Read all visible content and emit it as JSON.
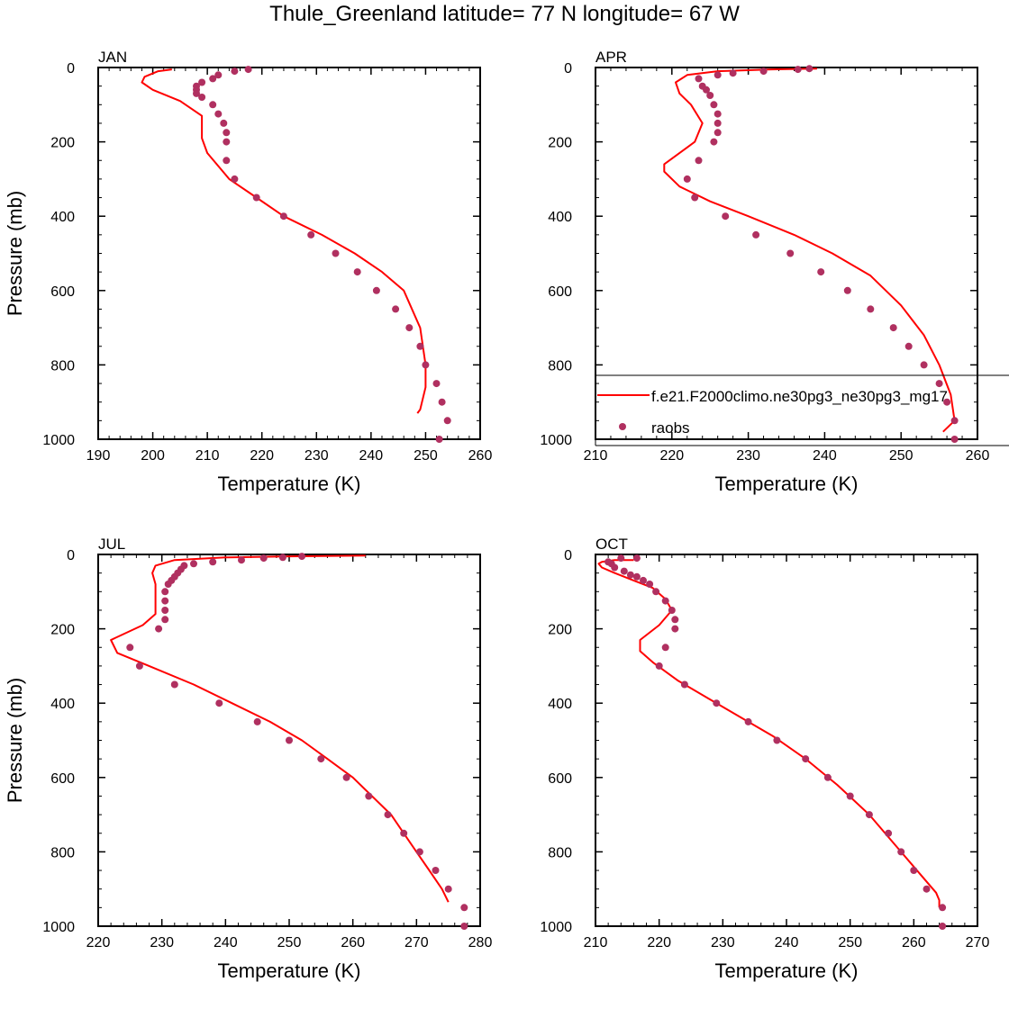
{
  "title": "Thule_Greenland  latitude= 77 N longitude= 67 W",
  "colors": {
    "model": "#ff0000",
    "obs": "#b03060",
    "axis": "#000000"
  },
  "legend": {
    "model_label": "f.e21.F2000climo.ne30pg3_ne30pg3_mg17",
    "obs_label": "raobs"
  },
  "chart_data": [
    {
      "type": "line",
      "panel": "JAN",
      "xlabel": "Temperature (K)",
      "ylabel": "Pressure (mb)",
      "xlim": [
        190,
        260
      ],
      "ylim": [
        0,
        1000
      ],
      "y_reversed": true,
      "xticks": [
        190,
        200,
        210,
        220,
        230,
        240,
        250,
        260
      ],
      "yticks": [
        0,
        200,
        400,
        600,
        800,
        1000
      ],
      "grid": false,
      "series": [
        {
          "name": "f.e21.F2000climo.ne30pg3_ne30pg3_mg17",
          "style": "line",
          "points": [
            [
              203.5,
              5
            ],
            [
              201,
              10
            ],
            [
              198.5,
              25
            ],
            [
              198,
              40
            ],
            [
              200,
              60
            ],
            [
              205,
              90
            ],
            [
              209,
              130
            ],
            [
              209,
              160
            ],
            [
              209,
              190
            ],
            [
              210,
              230
            ],
            [
              214,
              300
            ],
            [
              219,
              350
            ],
            [
              224,
              400
            ],
            [
              231,
              450
            ],
            [
              237,
              500
            ],
            [
              242,
              550
            ],
            [
              246,
              600
            ],
            [
              249,
              700
            ],
            [
              250,
              800
            ],
            [
              250,
              860
            ],
            [
              249,
              920
            ],
            [
              248.5,
              930
            ]
          ]
        },
        {
          "name": "raobs",
          "style": "markers",
          "points": [
            [
              217.5,
              5
            ],
            [
              215,
              10
            ],
            [
              212,
              20
            ],
            [
              211,
              30
            ],
            [
              209,
              40
            ],
            [
              208,
              50
            ],
            [
              208,
              60
            ],
            [
              208,
              70
            ],
            [
              209,
              80
            ],
            [
              211,
              100
            ],
            [
              212,
              125
            ],
            [
              213,
              150
            ],
            [
              213.5,
              175
            ],
            [
              213.5,
              200
            ],
            [
              213.5,
              250
            ],
            [
              215,
              300
            ],
            [
              219,
              350
            ],
            [
              224,
              400
            ],
            [
              229,
              450
            ],
            [
              233.5,
              500
            ],
            [
              237.5,
              550
            ],
            [
              241,
              600
            ],
            [
              244.5,
              650
            ],
            [
              247,
              700
            ],
            [
              249,
              750
            ],
            [
              250,
              800
            ],
            [
              252,
              850
            ],
            [
              253,
              900
            ],
            [
              254,
              950
            ],
            [
              252.5,
              1000
            ]
          ]
        }
      ]
    },
    {
      "type": "line",
      "panel": "APR",
      "xlabel": "Temperature (K)",
      "ylabel": "",
      "xlim": [
        210,
        260
      ],
      "ylim": [
        0,
        1000
      ],
      "y_reversed": true,
      "xticks": [
        210,
        220,
        230,
        240,
        250,
        260
      ],
      "yticks": [
        0,
        200,
        400,
        600,
        800,
        1000
      ],
      "grid": false,
      "legend_position": "bottom-right",
      "series": [
        {
          "name": "f.e21.F2000climo.ne30pg3_ne30pg3_mg17",
          "style": "line",
          "points": [
            [
              239,
              3
            ],
            [
              233,
              5
            ],
            [
              226,
              10
            ],
            [
              222,
              20
            ],
            [
              220.5,
              40
            ],
            [
              221,
              70
            ],
            [
              222.5,
              100
            ],
            [
              224,
              150
            ],
            [
              223,
              200
            ],
            [
              219,
              260
            ],
            [
              219,
              280
            ],
            [
              221,
              320
            ],
            [
              225,
              360
            ],
            [
              230,
              400
            ],
            [
              236,
              450
            ],
            [
              241,
              500
            ],
            [
              246,
              560
            ],
            [
              250,
              640
            ],
            [
              253,
              720
            ],
            [
              255,
              800
            ],
            [
              256.5,
              880
            ],
            [
              257,
              950
            ],
            [
              255.5,
              980
            ]
          ]
        },
        {
          "name": "raobs",
          "style": "markers",
          "points": [
            [
              238,
              3
            ],
            [
              236.5,
              5
            ],
            [
              232,
              10
            ],
            [
              228,
              15
            ],
            [
              226,
              20
            ],
            [
              223.5,
              30
            ],
            [
              224,
              50
            ],
            [
              224.5,
              60
            ],
            [
              225,
              75
            ],
            [
              225.5,
              100
            ],
            [
              226,
              125
            ],
            [
              226,
              150
            ],
            [
              226,
              175
            ],
            [
              225.5,
              200
            ],
            [
              223.5,
              250
            ],
            [
              222,
              300
            ],
            [
              223,
              350
            ],
            [
              227,
              400
            ],
            [
              231,
              450
            ],
            [
              235.5,
              500
            ],
            [
              239.5,
              550
            ],
            [
              243,
              600
            ],
            [
              246,
              650
            ],
            [
              249,
              700
            ],
            [
              251,
              750
            ],
            [
              253,
              800
            ],
            [
              255,
              850
            ],
            [
              256,
              900
            ],
            [
              257,
              950
            ],
            [
              257,
              1000
            ]
          ]
        }
      ]
    },
    {
      "type": "line",
      "panel": "JUL",
      "xlabel": "Temperature (K)",
      "ylabel": "Pressure (mb)",
      "xlim": [
        220,
        280
      ],
      "ylim": [
        0,
        1000
      ],
      "y_reversed": true,
      "xticks": [
        220,
        230,
        240,
        250,
        260,
        270,
        280
      ],
      "yticks": [
        0,
        200,
        400,
        600,
        800,
        1000
      ],
      "grid": false,
      "series": [
        {
          "name": "f.e21.F2000climo.ne30pg3_ne30pg3_mg17",
          "style": "line",
          "points": [
            [
              262,
              3
            ],
            [
              250,
              5
            ],
            [
              240,
              8
            ],
            [
              232,
              15
            ],
            [
              229,
              30
            ],
            [
              228.5,
              50
            ],
            [
              229,
              80
            ],
            [
              229,
              110
            ],
            [
              229,
              160
            ],
            [
              227,
              190
            ],
            [
              222,
              230
            ],
            [
              223,
              265
            ],
            [
              228,
              300
            ],
            [
              235,
              350
            ],
            [
              241,
              400
            ],
            [
              247,
              450
            ],
            [
              252,
              500
            ],
            [
              256,
              550
            ],
            [
              260,
              600
            ],
            [
              263,
              650
            ],
            [
              266,
              700
            ],
            [
              268,
              750
            ],
            [
              270,
              800
            ],
            [
              272,
              850
            ],
            [
              274,
              900
            ],
            [
              275,
              935
            ]
          ]
        },
        {
          "name": "raobs",
          "style": "markers",
          "points": [
            [
              252,
              5
            ],
            [
              249,
              8
            ],
            [
              246,
              10
            ],
            [
              242.5,
              15
            ],
            [
              238,
              20
            ],
            [
              235,
              25
            ],
            [
              233.5,
              30
            ],
            [
              233,
              40
            ],
            [
              232.5,
              50
            ],
            [
              232,
              60
            ],
            [
              231.5,
              70
            ],
            [
              231,
              80
            ],
            [
              230.5,
              100
            ],
            [
              230.5,
              125
            ],
            [
              230.5,
              150
            ],
            [
              230.5,
              175
            ],
            [
              229.5,
              200
            ],
            [
              225,
              250
            ],
            [
              226.5,
              300
            ],
            [
              232,
              350
            ],
            [
              239,
              400
            ],
            [
              245,
              450
            ],
            [
              250,
              500
            ],
            [
              255,
              550
            ],
            [
              259,
              600
            ],
            [
              262.5,
              650
            ],
            [
              265.5,
              700
            ],
            [
              268,
              750
            ],
            [
              270.5,
              800
            ],
            [
              273,
              850
            ],
            [
              275,
              900
            ],
            [
              277.5,
              950
            ],
            [
              277.5,
              1000
            ]
          ]
        }
      ]
    },
    {
      "type": "line",
      "panel": "OCT",
      "xlabel": "Temperature (K)",
      "ylabel": "",
      "xlim": [
        210,
        270
      ],
      "ylim": [
        0,
        1000
      ],
      "y_reversed": true,
      "xticks": [
        210,
        220,
        230,
        240,
        250,
        260,
        270
      ],
      "yticks": [
        0,
        200,
        400,
        600,
        800,
        1000
      ],
      "grid": false,
      "series": [
        {
          "name": "f.e21.F2000climo.ne30pg3_ne30pg3_mg17",
          "style": "line",
          "points": [
            [
              216,
              15
            ],
            [
              213,
              15
            ],
            [
              211,
              20
            ],
            [
              210.5,
              25
            ],
            [
              211,
              35
            ],
            [
              213,
              50
            ],
            [
              216,
              70
            ],
            [
              219,
              90
            ],
            [
              221,
              120
            ],
            [
              222,
              150
            ],
            [
              220,
              190
            ],
            [
              217,
              230
            ],
            [
              217,
              260
            ],
            [
              219,
              290
            ],
            [
              223,
              340
            ],
            [
              228,
              390
            ],
            [
              233,
              440
            ],
            [
              238,
              490
            ],
            [
              243,
              550
            ],
            [
              248,
              620
            ],
            [
              253,
              700
            ],
            [
              257,
              780
            ],
            [
              261,
              860
            ],
            [
              263.5,
              910
            ],
            [
              264,
              930
            ],
            [
              264,
              950
            ]
          ]
        },
        {
          "name": "raobs",
          "style": "markers",
          "points": [
            [
              216.5,
              10
            ],
            [
              214,
              10
            ],
            [
              212,
              20
            ],
            [
              212.5,
              25
            ],
            [
              213,
              35
            ],
            [
              214.5,
              45
            ],
            [
              215.5,
              55
            ],
            [
              216.5,
              60
            ],
            [
              217.5,
              70
            ],
            [
              218.5,
              80
            ],
            [
              219.5,
              100
            ],
            [
              221,
              125
            ],
            [
              222,
              150
            ],
            [
              222.5,
              175
            ],
            [
              222.5,
              200
            ],
            [
              221,
              250
            ],
            [
              220,
              300
            ],
            [
              224,
              350
            ],
            [
              229,
              400
            ],
            [
              234,
              450
            ],
            [
              238.5,
              500
            ],
            [
              243,
              550
            ],
            [
              246.5,
              600
            ],
            [
              250,
              650
            ],
            [
              253,
              700
            ],
            [
              256,
              750
            ],
            [
              258,
              800
            ],
            [
              260,
              850
            ],
            [
              262,
              900
            ],
            [
              264.5,
              950
            ],
            [
              264.5,
              1000
            ]
          ]
        }
      ]
    }
  ]
}
